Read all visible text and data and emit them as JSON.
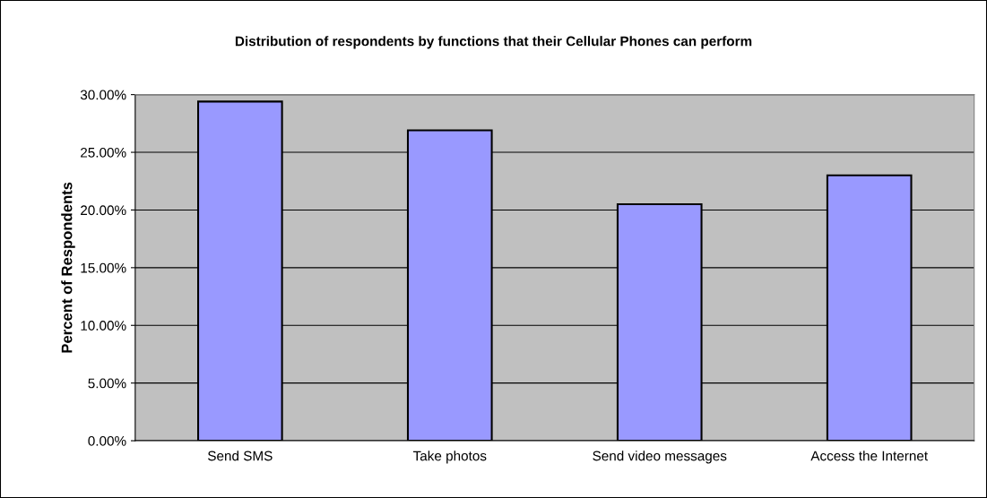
{
  "chart_data": {
    "type": "bar",
    "title": "Distribution of respondents by functions that their Cellular Phones can perform",
    "ylabel": "Percent of Respondents",
    "categories": [
      "Send SMS",
      "Take photos",
      "Send video messages",
      "Access the Internet"
    ],
    "values": [
      29.4,
      26.9,
      20.5,
      23.0
    ],
    "color": "#9999ff",
    "ylim": [
      0,
      30
    ],
    "yticks": [
      {
        "value": 0,
        "label": "0.00%"
      },
      {
        "value": 5,
        "label": "5.00%"
      },
      {
        "value": 10,
        "label": "10.00%"
      },
      {
        "value": 15,
        "label": "15.00%"
      },
      {
        "value": 20,
        "label": "20.00%"
      },
      {
        "value": 25,
        "label": "25.00%"
      },
      {
        "value": 30,
        "label": "30.00%"
      }
    ],
    "grid": "y"
  }
}
